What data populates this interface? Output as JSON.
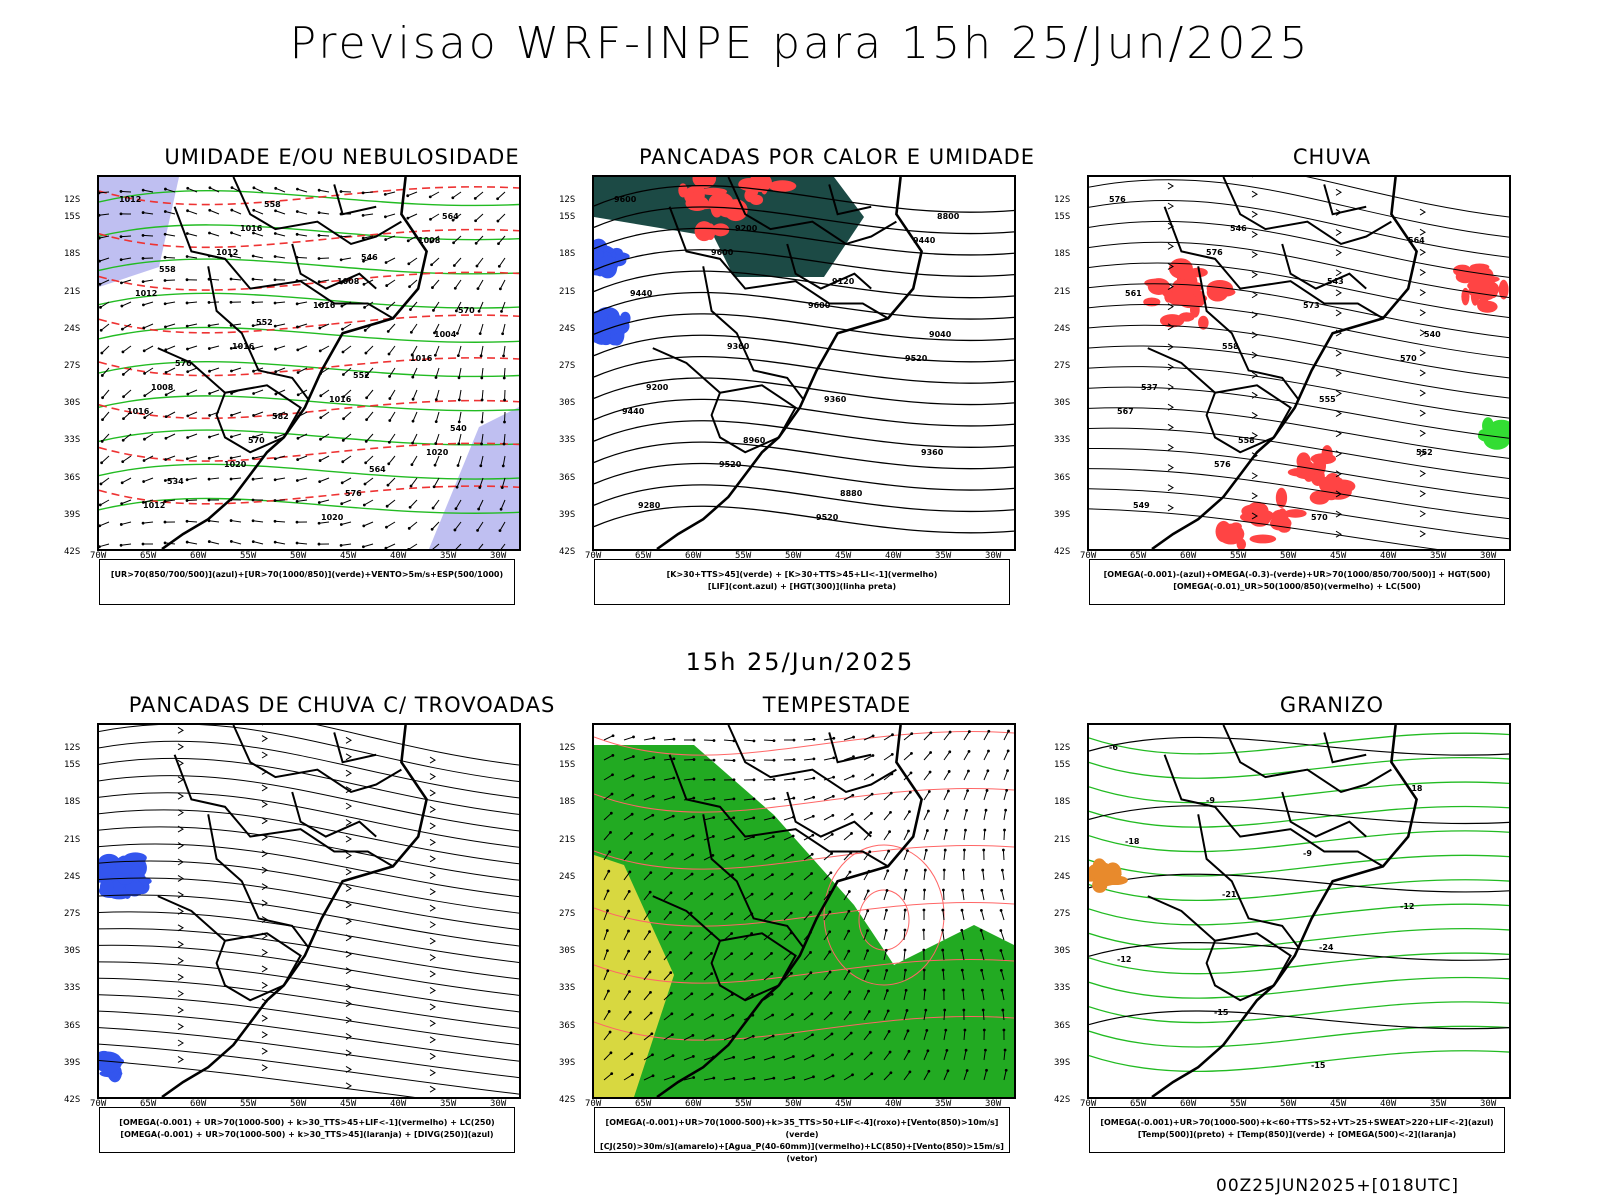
{
  "header": {
    "title": "Previsao WRF-INPE  para 15h 25/Jun/2025",
    "subtitle": "15h 25/Jun/2025",
    "footer": "00Z25JUN2025+[018UTC]"
  },
  "axes": {
    "lat_labels": [
      "12S",
      "15S",
      "18S",
      "21S",
      "24S",
      "27S",
      "30S",
      "33S",
      "36S",
      "39S",
      "42S"
    ],
    "lon_labels": [
      "70W",
      "65W",
      "60W",
      "55W",
      "50W",
      "45W",
      "40W",
      "35W",
      "30W"
    ]
  },
  "colors": {
    "blue": "#3355ee",
    "green": "#22bb22",
    "red": "#ff4444",
    "darkgreen": "#1c4a45",
    "lavender": "#b8b8f0",
    "yellow": "#d8d840",
    "orange": "#e88a2c",
    "lightgreen": "#33dd33"
  },
  "panels": [
    {
      "title": "UMIDADE E/OU NEBULOSIDADE",
      "legend": [
        "[UR>70(850/700/500)](azul)+[UR>70(1000/850)](verde)+VENTO>5m/s+ESP(500/1000)"
      ],
      "contour_labels": [
        "1012",
        "1012",
        "1016",
        "1016",
        "1016",
        "1020",
        "1020",
        "1008",
        "1012",
        "1016",
        "1016",
        "1020",
        "1012",
        "1016",
        "1008",
        "1004",
        "1008",
        "570",
        "576",
        "564",
        "558",
        "552",
        "552",
        "540",
        "534",
        "558",
        "546",
        "570",
        "576",
        "582",
        "564"
      ]
    },
    {
      "title": "PANCADAS POR CALOR E UMIDADE",
      "legend": [
        "[K>30+TTS>45](verde) + [K>30+TTS>45+LI<-1](vermelho)",
        "[LIF](cont.azul) + [HGT(300)](linha preta)"
      ],
      "contour_labels": [
        "9600",
        "9600",
        "9600",
        "9520",
        "9440",
        "9520",
        "9520",
        "9440",
        "9440",
        "9360",
        "9360",
        "9360",
        "9280",
        "9200",
        "9120",
        "9040",
        "9200",
        "8960",
        "8880",
        "8800"
      ]
    },
    {
      "title": "CHUVA",
      "legend": [
        "[OMEGA(-0.001)-(azul)+OMEGA(-0.3)-(verde)+UR>70(1000/850/700/500)] + HGT(500)",
        "[OMEGA(-0.01)_UR>50(1000/850)(vermelho) + LC(500)"
      ],
      "contour_labels": [
        "576",
        "576",
        "573",
        "570",
        "567",
        "576",
        "570",
        "564",
        "561",
        "558",
        "555",
        "552",
        "549",
        "546",
        "543",
        "540",
        "537",
        "558"
      ]
    },
    {
      "title": "PANCADAS DE CHUVA C/ TROVOADAS",
      "legend": [
        "[OMEGA(-0.001) + UR>70(1000-500) + k>30_TTS>45+LIF<-1](vermelho) + LC(250)",
        "[OMEGA(-0.001) + UR>70(1000-500) + k>30_TTS>45](laranja) + [DIVG(250)](azul)"
      ],
      "contour_labels": []
    },
    {
      "title": "TEMPESTADE",
      "legend": [
        "[OMEGA(-0.001)+UR>70(1000-500)+k>35_TTS>50+LIF<-4](roxo)+[Vento(850)>10m/s](verde)",
        "[CJ(250)>30m/s](amarelo)+[Agua_P(40-60mm)](vermelho)+LC(850)+[Vento(850)>15m/s](vetor)"
      ],
      "contour_labels": []
    },
    {
      "title": "GRANIZO",
      "legend": [
        "[OMEGA(-0.001)+UR>70(1000-500)+k<60+TTS>52+VT>25+SWEAT>220+LIF<-2](azul)",
        "[Temp(500)](preto) + [Temp(850)](verde) + [OMEGA(500)<-2](laranja)"
      ],
      "contour_labels": [
        "-6",
        "-9",
        "-9",
        "-12",
        "-12",
        "-15",
        "-15",
        "-18",
        "-18",
        "-21",
        "-24"
      ]
    }
  ]
}
